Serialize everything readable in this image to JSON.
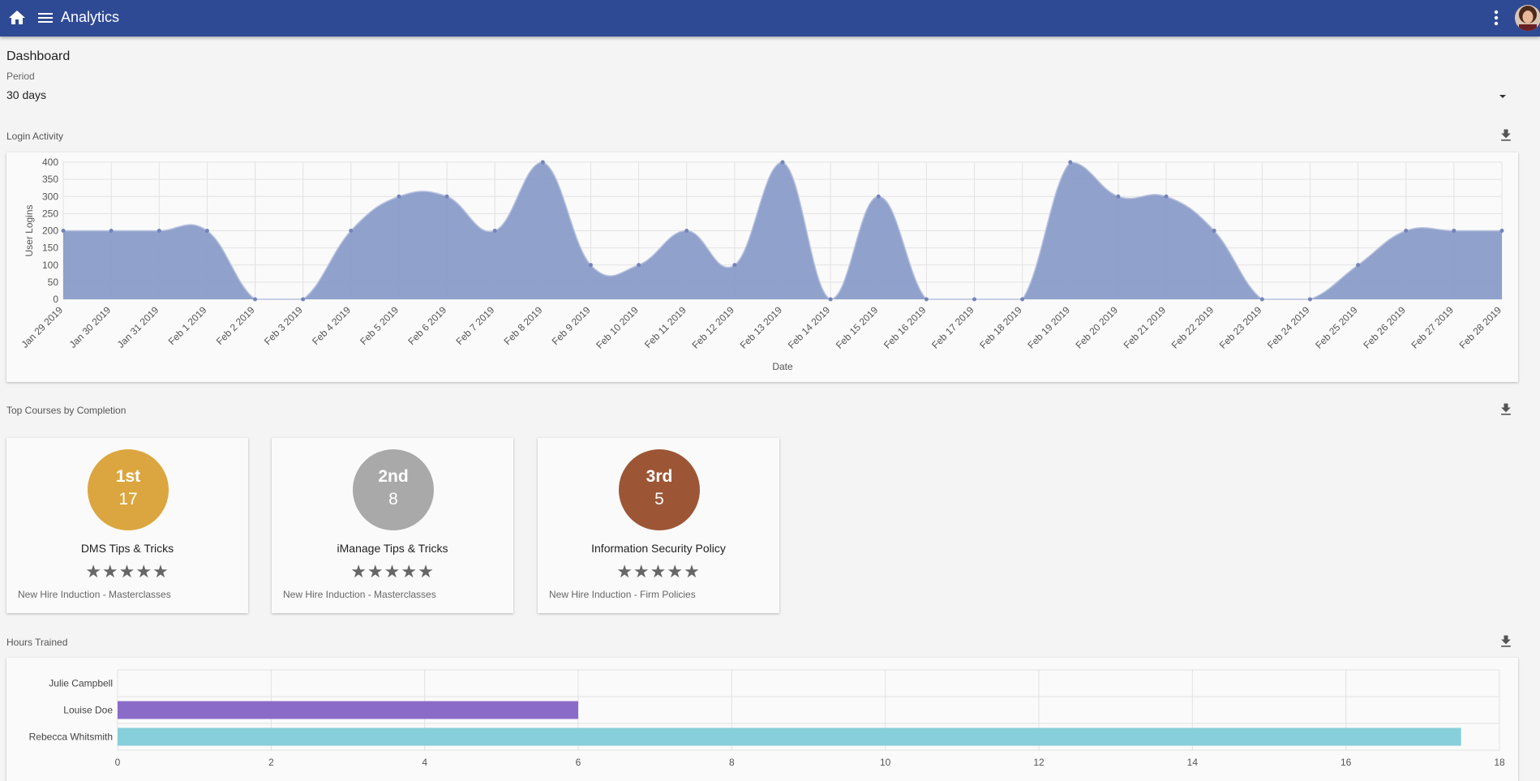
{
  "topbar": {
    "title": "Analytics",
    "bg": "#2f4a94"
  },
  "dashboard": {
    "title": "Dashboard",
    "period_label": "Period",
    "period_value": "30 days"
  },
  "login_activity": {
    "label": "Login Activity"
  },
  "top_courses": {
    "label": "Top Courses by Completion",
    "cards": [
      {
        "rank": "1st",
        "count": "17",
        "name": "DMS Tips & Tricks",
        "stars": "★★★★★",
        "subtitle": "New Hire Induction - Masterclasses",
        "color": "#dba63f"
      },
      {
        "rank": "2nd",
        "count": "8",
        "name": "iManage Tips & Tricks",
        "stars": "★★★★★",
        "subtitle": "New Hire Induction - Masterclasses",
        "color": "#a9a9a9"
      },
      {
        "rank": "3rd",
        "count": "5",
        "name": "Information Security Policy",
        "stars": "★★★★★",
        "subtitle": "New Hire Induction - Firm Policies",
        "color": "#9c5636"
      }
    ]
  },
  "hours_trained": {
    "label": "Hours Trained"
  },
  "chart_data": [
    {
      "type": "area",
      "xlabel": "Date",
      "ylabel": "User Logins",
      "ylim": [
        0,
        400
      ],
      "yticks": [
        0,
        50,
        100,
        150,
        200,
        250,
        300,
        350,
        400
      ],
      "grid": true,
      "color": "#8a9cc9",
      "categories": [
        "Jan 29 2019",
        "Jan 30 2019",
        "Jan 31 2019",
        "Feb 1 2019",
        "Feb 2 2019",
        "Feb 3 2019",
        "Feb 4 2019",
        "Feb 5 2019",
        "Feb 6 2019",
        "Feb 7 2019",
        "Feb 8 2019",
        "Feb 9 2019",
        "Feb 10 2019",
        "Feb 11 2019",
        "Feb 12 2019",
        "Feb 13 2019",
        "Feb 14 2019",
        "Feb 15 2019",
        "Feb 16 2019",
        "Feb 17 2019",
        "Feb 18 2019",
        "Feb 19 2019",
        "Feb 20 2019",
        "Feb 21 2019",
        "Feb 22 2019",
        "Feb 23 2019",
        "Feb 24 2019",
        "Feb 25 2019",
        "Feb 26 2019",
        "Feb 27 2019",
        "Feb 28 2019"
      ],
      "values": [
        200,
        200,
        200,
        200,
        0,
        0,
        200,
        300,
        300,
        200,
        400,
        100,
        100,
        200,
        100,
        400,
        0,
        300,
        0,
        0,
        0,
        400,
        300,
        300,
        200,
        0,
        0,
        100,
        200,
        200,
        200
      ]
    },
    {
      "type": "bar",
      "orientation": "horizontal",
      "categories": [
        "Julie Campbell",
        "Louise Doe",
        "Rebecca Whitsmith"
      ],
      "values": [
        0,
        6,
        17.5
      ],
      "colors": [
        "#8a6cc8",
        "#8a6cc8",
        "#86cfdb"
      ],
      "xlim": [
        0,
        18
      ],
      "xticks": [
        0,
        2,
        4,
        6,
        8,
        10,
        12,
        14,
        16,
        18
      ],
      "grid": true
    }
  ]
}
